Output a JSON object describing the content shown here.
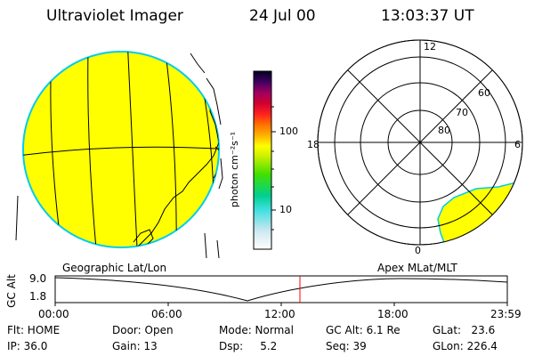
{
  "header": {
    "instrument": "Ultraviolet Imager",
    "date": "24 Jul 00",
    "time": "13:03:37 UT"
  },
  "colorbar": {
    "unit": "photon cm⁻²s⁻¹",
    "tick_100": "100",
    "tick_10": "10"
  },
  "polar": {
    "mlt_12": "12",
    "mlt_18": "18",
    "mlt_6": "6",
    "mlt_0": "0",
    "lat_60": "60",
    "lat_70": "70",
    "lat_80": "80"
  },
  "panels": {
    "left_label": "Geographic Lat/Lon",
    "right_label": "Apex MLat/MLT"
  },
  "altitude_plot": {
    "ylabel": "GC Alt",
    "y_top": "9.0",
    "y_bottom": "1.8",
    "x_ticks": [
      "00:00",
      "06:00",
      "12:00",
      "18:00",
      "23:59"
    ]
  },
  "status": {
    "flt": "Flt: HOME",
    "ip": "IP: 36.0",
    "door": "Door: Open",
    "gain": "Gain: 13",
    "mode": "Mode: Normal",
    "dsp": "Dsp:     5.2",
    "gcalt": "GC Alt: 6.1 Re",
    "seq": "Seq: 39",
    "glat": "GLat:   23.6",
    "glon": "GLon: 226.4"
  },
  "colors": {
    "image_fill": "#ffff00",
    "limb": "#00ccee",
    "marker": "#ff0000"
  }
}
